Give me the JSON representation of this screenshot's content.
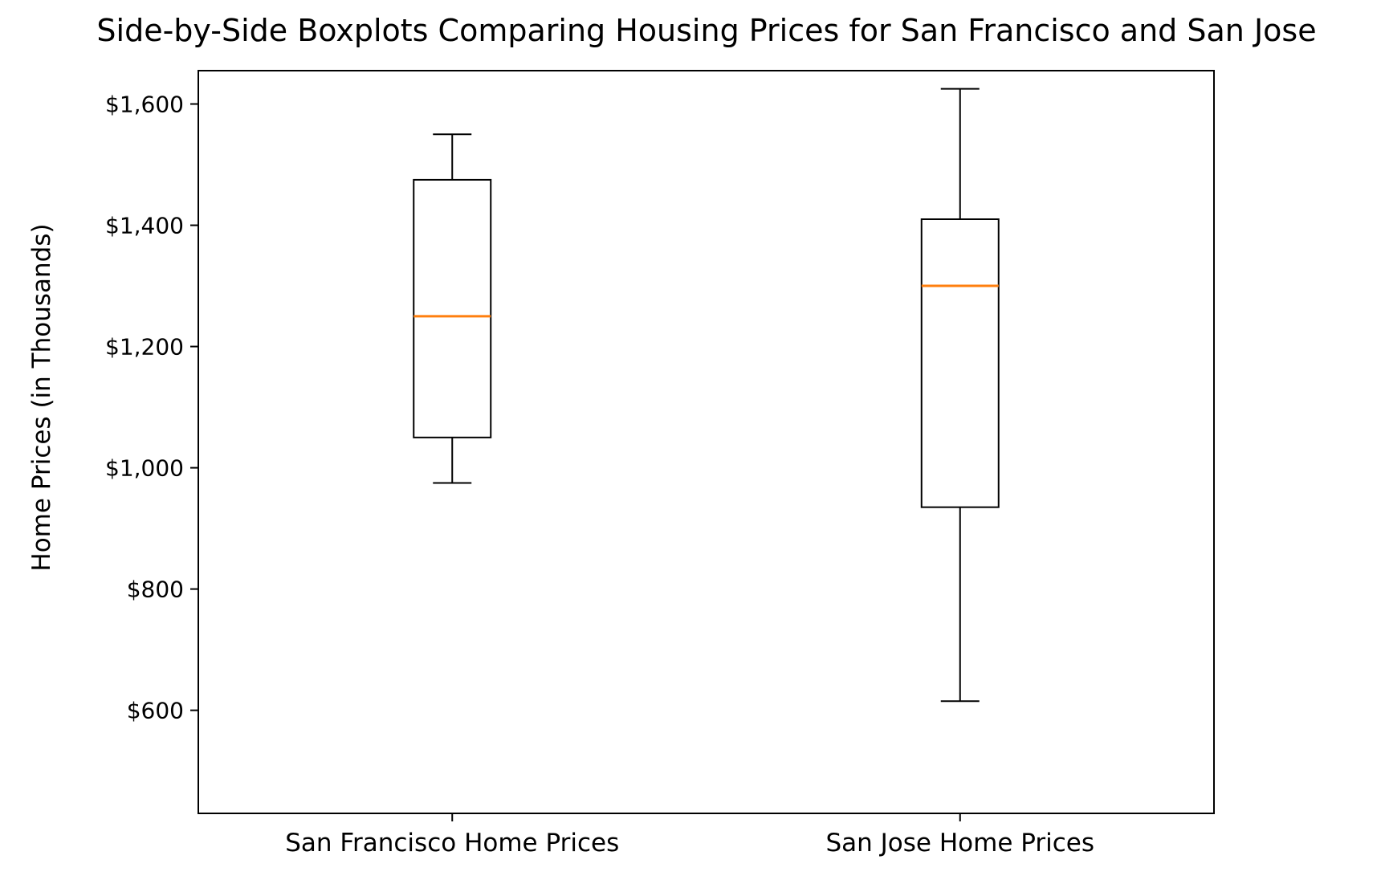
{
  "chart_data": {
    "type": "boxplot",
    "title": "Side-by-Side Boxplots Comparing Housing Prices for San Francisco and San Jose",
    "ylabel": "Home Prices (in Thousands)",
    "xlabel": "",
    "categories": [
      "San Francisco Home Prices",
      "San Jose Home Prices"
    ],
    "series": [
      {
        "name": "San Francisco Home Prices",
        "min": 975,
        "q1": 1050,
        "median": 1250,
        "q3": 1475,
        "max": 1550
      },
      {
        "name": "San Jose Home Prices",
        "min": 615,
        "q1": 935,
        "median": 1300,
        "q3": 1410,
        "max": 1625
      }
    ],
    "ylim": [
      430,
      1655
    ],
    "y_ticks": [
      600,
      800,
      1000,
      1200,
      1400,
      1600
    ],
    "y_tick_labels": [
      "$600",
      "$800",
      "$1,000",
      "$1,200",
      "$1,400",
      "$1,600"
    ],
    "median_color": "#ff7f0e",
    "box_color": "#000000",
    "background_color": "#ffffff",
    "grid": false,
    "legend": "none"
  }
}
